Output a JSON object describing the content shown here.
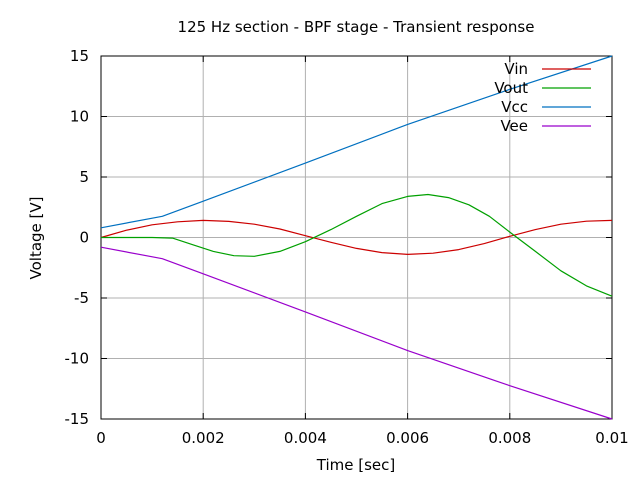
{
  "chart_data": {
    "type": "line",
    "title": "125 Hz section - BPF stage - Transient response",
    "xlabel": "Time [sec]",
    "ylabel": "Voltage [V]",
    "xlim": [
      0,
      0.01
    ],
    "ylim": [
      -15,
      15
    ],
    "xticks": [
      0,
      0.002,
      0.004,
      0.006,
      0.008,
      0.01
    ],
    "xtick_labels": [
      "0",
      "0.002",
      "0.004",
      "0.006",
      "0.008",
      "0.01"
    ],
    "yticks": [
      -15,
      -10,
      -5,
      0,
      5,
      10,
      15
    ],
    "ytick_labels": [
      "-15",
      "-10",
      "-5",
      "0",
      "5",
      "10",
      "15"
    ],
    "grid": true,
    "legend_position": "top-right",
    "series": [
      {
        "name": "Vin",
        "color": "#cc0000",
        "x": [
          0,
          0.0005,
          0.001,
          0.0015,
          0.002,
          0.0025,
          0.003,
          0.0035,
          0.004,
          0.0045,
          0.005,
          0.0055,
          0.006,
          0.0065,
          0.007,
          0.0075,
          0.008,
          0.0085,
          0.009,
          0.0095,
          0.01
        ],
        "y": [
          0,
          0.6,
          1.05,
          1.3,
          1.41,
          1.33,
          1.1,
          0.7,
          0.15,
          -0.4,
          -0.9,
          -1.25,
          -1.4,
          -1.3,
          -1.0,
          -0.5,
          0.1,
          0.65,
          1.1,
          1.35,
          1.41
        ]
      },
      {
        "name": "Vout",
        "color": "#00a000",
        "x": [
          0,
          0.0005,
          0.001,
          0.0014,
          0.0018,
          0.0022,
          0.0026,
          0.003,
          0.0035,
          0.004,
          0.0045,
          0.005,
          0.0055,
          0.006,
          0.0064,
          0.0068,
          0.0072,
          0.0076,
          0.008,
          0.0085,
          0.009,
          0.0095,
          0.01
        ],
        "y": [
          0,
          0,
          0,
          -0.05,
          -0.6,
          -1.15,
          -1.5,
          -1.55,
          -1.15,
          -0.35,
          0.65,
          1.75,
          2.8,
          3.4,
          3.55,
          3.3,
          2.7,
          1.75,
          0.45,
          -1.15,
          -2.75,
          -4.0,
          -4.85
        ]
      },
      {
        "name": "Vcc",
        "color": "#0070c0",
        "x": [
          0,
          0.0012,
          0.002,
          0.004,
          0.006,
          0.008,
          0.01
        ],
        "y": [
          0.8,
          1.75,
          3.0,
          6.15,
          9.35,
          12.25,
          15.0
        ]
      },
      {
        "name": "Vee",
        "color": "#9900cc",
        "x": [
          0,
          0.0012,
          0.002,
          0.004,
          0.006,
          0.008,
          0.01
        ],
        "y": [
          -0.8,
          -1.75,
          -3.0,
          -6.15,
          -9.35,
          -12.25,
          -15.0
        ]
      }
    ]
  }
}
